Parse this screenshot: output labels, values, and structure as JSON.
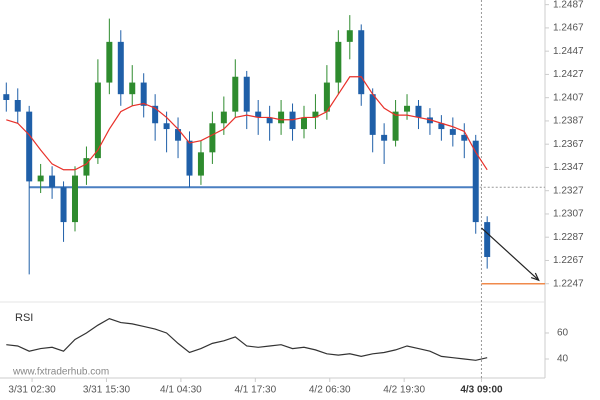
{
  "chart_data": {
    "type": "candlestick",
    "x": [
      -2,
      0,
      2,
      4,
      6,
      8,
      10,
      12,
      14,
      16,
      18,
      20,
      22,
      24,
      26,
      28,
      30,
      32,
      34,
      36,
      38,
      40,
      42,
      44,
      46,
      48,
      50,
      52,
      54,
      56,
      58,
      60,
      62,
      64,
      66,
      68,
      70,
      72,
      74,
      76,
      78,
      80,
      82
    ],
    "open": [
      1.241,
      1.2405,
      1.2395,
      1.2335,
      1.234,
      1.233,
      1.23,
      1.234,
      1.2355,
      1.242,
      1.2455,
      1.241,
      1.242,
      1.24,
      1.2385,
      1.238,
      1.237,
      1.234,
      1.236,
      1.2385,
      1.2395,
      1.2425,
      1.2395,
      1.239,
      1.2385,
      1.2395,
      1.238,
      1.239,
      1.2395,
      1.242,
      1.2455,
      1.2465,
      1.241,
      1.2375,
      1.237,
      1.2395,
      1.24,
      1.239,
      1.2385,
      1.238,
      1.2375,
      1.237,
      1.23
    ],
    "high": [
      1.242,
      1.2415,
      1.24,
      1.235,
      1.2348,
      1.2335,
      1.2348,
      1.2365,
      1.244,
      1.2475,
      1.2465,
      1.2435,
      1.2428,
      1.241,
      1.2395,
      1.239,
      1.2378,
      1.237,
      1.2395,
      1.2408,
      1.244,
      1.243,
      1.2405,
      1.24,
      1.2405,
      1.2402,
      1.24,
      1.241,
      1.2435,
      1.2465,
      1.2478,
      1.247,
      1.2415,
      1.2385,
      1.2405,
      1.241,
      1.2405,
      1.2398,
      1.2392,
      1.239,
      1.2385,
      1.2375,
      1.2305
    ],
    "low": [
      1.2395,
      1.2385,
      1.2255,
      1.2325,
      1.232,
      1.2283,
      1.2292,
      1.2332,
      1.235,
      1.241,
      1.24,
      1.24,
      1.239,
      1.237,
      1.236,
      1.2355,
      1.233,
      1.2332,
      1.235,
      1.2375,
      1.239,
      1.238,
      1.2375,
      1.237,
      1.2375,
      1.237,
      1.2372,
      1.238,
      1.2388,
      1.241,
      1.244,
      1.24,
      1.236,
      1.235,
      1.2365,
      1.2388,
      1.238,
      1.2375,
      1.237,
      1.2365,
      1.2355,
      1.229,
      1.226
    ],
    "close": [
      1.2405,
      1.2395,
      1.2335,
      1.234,
      1.233,
      1.23,
      1.234,
      1.2355,
      1.242,
      1.2455,
      1.241,
      1.242,
      1.24,
      1.2385,
      1.238,
      1.237,
      1.234,
      1.236,
      1.2385,
      1.2395,
      1.2425,
      1.2395,
      1.239,
      1.2385,
      1.2395,
      1.238,
      1.239,
      1.2395,
      1.242,
      1.2455,
      1.2465,
      1.241,
      1.2375,
      1.237,
      1.2395,
      1.24,
      1.239,
      1.2385,
      1.238,
      1.2375,
      1.237,
      1.23,
      1.227
    ],
    "up_color": "#2e8b2e",
    "down_color": "#1f5fa8",
    "ma": {
      "color": "#e8312a",
      "values": [
        1.2388,
        1.2385,
        1.2375,
        1.2362,
        1.235,
        1.2345,
        1.2345,
        1.235,
        1.2362,
        1.238,
        1.2395,
        1.24,
        1.2402,
        1.2398,
        1.239,
        1.238,
        1.2368,
        1.237,
        1.2375,
        1.238,
        1.239,
        1.2392,
        1.239,
        1.239,
        1.2388,
        1.2388,
        1.239,
        1.239,
        1.2395,
        1.241,
        1.2425,
        1.2425,
        1.241,
        1.2398,
        1.2392,
        1.2392,
        1.239,
        1.2388,
        1.2385,
        1.2382,
        1.2378,
        1.236,
        1.2345
      ]
    },
    "support": {
      "value": 1.233,
      "x": [
        2,
        80
      ],
      "color": "#4a7fc1"
    },
    "target": {
      "value": 1.2247,
      "x": [
        81,
        92.1
      ],
      "color": "#f08a4b"
    },
    "arrow": {
      "x": [
        81,
        91
      ],
      "y": [
        1.2295,
        1.225
      ]
    },
    "current_x": 81,
    "xlim": [
      -3.1,
      92.1
    ],
    "ylim": [
      1.2233,
      1.2491
    ],
    "yticks": [
      1.2487,
      1.2467,
      1.2447,
      1.2427,
      1.2407,
      1.2387,
      1.2367,
      1.2347,
      1.2327,
      1.2307,
      1.2287,
      1.2267,
      1.2247
    ],
    "xticks": [
      {
        "value": 2.5,
        "label": "3/31 02:30"
      },
      {
        "value": 15.5,
        "label": "3/31 15:30"
      },
      {
        "value": 28.5,
        "label": "4/1 04:30"
      },
      {
        "value": 41.5,
        "label": "4/1 17:30"
      },
      {
        "value": 54.5,
        "label": "4/2 06:30"
      },
      {
        "value": 67.5,
        "label": "4/2 19:30"
      },
      {
        "value": 81,
        "label": "4/3 09:00"
      }
    ],
    "rsi": {
      "label": "RSI",
      "color": "#333333",
      "ylim": [
        27.7,
        81.5
      ],
      "yticks": [
        60,
        40
      ],
      "values": [
        51,
        50,
        46,
        48,
        49,
        46,
        55,
        60,
        66,
        71,
        68,
        67,
        65,
        63,
        60,
        52,
        45,
        48,
        52,
        54,
        57,
        50,
        49,
        50,
        51,
        48,
        49,
        47,
        44,
        43,
        44,
        42,
        44,
        45,
        47,
        50,
        48,
        46,
        42,
        41,
        40,
        39,
        41
      ]
    },
    "watermark": "www.fxtraderhub.com"
  }
}
